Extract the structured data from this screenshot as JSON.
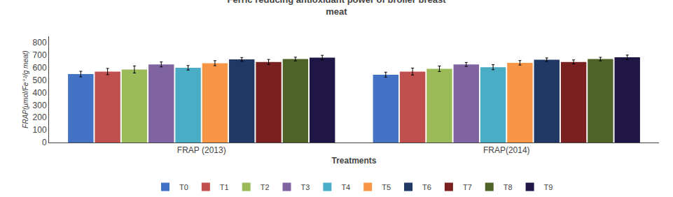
{
  "chart_data": {
    "type": "bar",
    "title": "Ferric reducing antioxidant power of broiler breast\nmeat",
    "xlabel": "Treatments",
    "ylabel": "FRAP(μmol/Fe⁺²/g meat)",
    "categories": [
      "FRAP (2013)",
      "FRAP(2014)"
    ],
    "series": [
      {
        "name": "T0",
        "color": "#4472C4",
        "values": [
          548,
          543
        ],
        "errors": [
          22,
          20
        ]
      },
      {
        "name": "T1",
        "color": "#C0504D",
        "values": [
          568,
          568
        ],
        "errors": [
          25,
          28
        ]
      },
      {
        "name": "T2",
        "color": "#9BBB59",
        "values": [
          585,
          590
        ],
        "errors": [
          28,
          22
        ]
      },
      {
        "name": "T3",
        "color": "#8064A2",
        "values": [
          625,
          625
        ],
        "errors": [
          20,
          16
        ]
      },
      {
        "name": "T4",
        "color": "#4BACC6",
        "values": [
          598,
          603
        ],
        "errors": [
          18,
          20
        ]
      },
      {
        "name": "T5",
        "color": "#F79646",
        "values": [
          635,
          638
        ],
        "errors": [
          20,
          18
        ]
      },
      {
        "name": "T6",
        "color": "#1F3864",
        "values": [
          665,
          663
        ],
        "errors": [
          15,
          14
        ]
      },
      {
        "name": "T7",
        "color": "#7B2020",
        "values": [
          645,
          645
        ],
        "errors": [
          20,
          16
        ]
      },
      {
        "name": "T8",
        "color": "#4F6228",
        "values": [
          668,
          668
        ],
        "errors": [
          15,
          14
        ]
      },
      {
        "name": "T9",
        "color": "#1F1646",
        "values": [
          680,
          682
        ],
        "errors": [
          18,
          18
        ]
      }
    ],
    "ylim": [
      0,
      850
    ],
    "yticks": [
      0,
      100,
      200,
      300,
      400,
      500,
      600,
      700,
      800
    ],
    "grid": false,
    "legend": "bottom"
  }
}
